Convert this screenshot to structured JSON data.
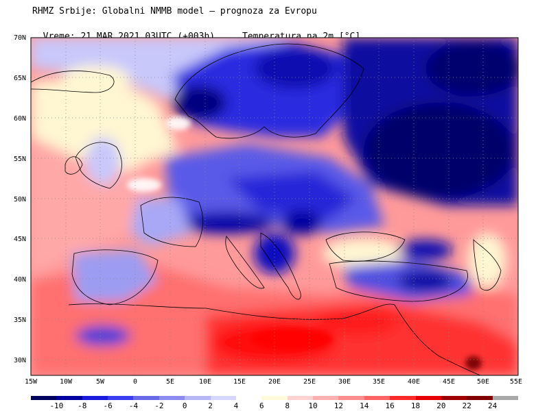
{
  "header": {
    "line1": "RHMZ Srbije: Globalni NMMB model — prognoza za Evropu",
    "line2_left": "Vreme: 21 MAR 2021 03UTC (+003h)",
    "line2_right": "Temperatura na 2m [°C]"
  },
  "map": {
    "lat_labels": [
      "70N",
      "65N",
      "60N",
      "55N",
      "50N",
      "45N",
      "40N",
      "35N",
      "30N"
    ],
    "lon_labels": [
      "15W",
      "10W",
      "5W",
      "0",
      "5E",
      "10E",
      "15E",
      "20E",
      "25E",
      "30E",
      "35E",
      "40E",
      "45E",
      "50E",
      "55E"
    ]
  },
  "legend": {
    "labels": [
      "-10",
      "-8",
      "-6",
      "-4",
      "-2",
      "0",
      "2",
      "4",
      "6",
      "8",
      "10",
      "12",
      "14",
      "16",
      "18",
      "20",
      "22",
      "24"
    ],
    "colors": [
      "#000060",
      "#0000a0",
      "#1a1adf",
      "#3b3bf0",
      "#6a6ae8",
      "#8c8cf0",
      "#b5b5f8",
      "#d6d6ff",
      "#ffffff",
      "#fffbd8",
      "#ffd2d2",
      "#ffb0b0",
      "#ff8d8d",
      "#ff6464",
      "#ff2a2a",
      "#e80000",
      "#a00000",
      "#800000",
      "#a8a8a8"
    ]
  }
}
